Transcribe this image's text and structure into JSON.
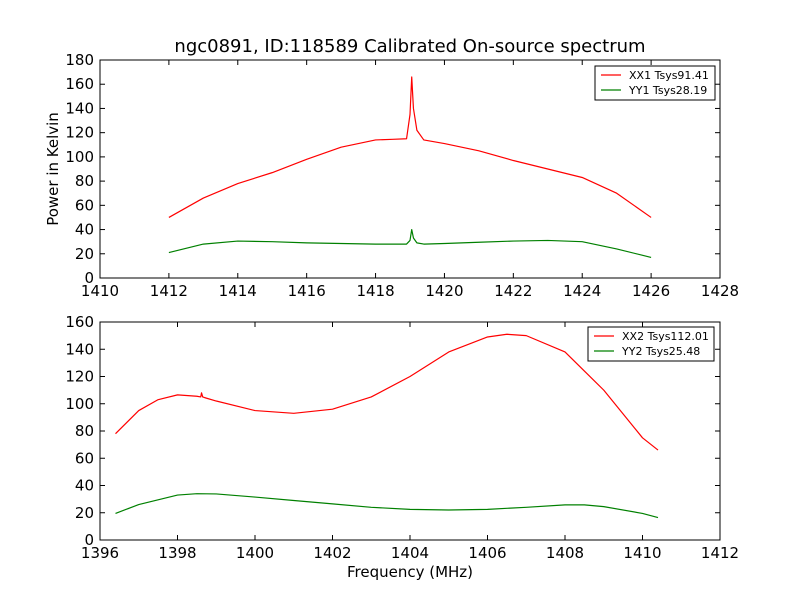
{
  "figure": {
    "title": "ngc0891, ID:118589 Calibrated On-source spectrum"
  },
  "colors": {
    "xx": "#ff0000",
    "yy": "#008000",
    "axes": "#000000",
    "background": "#ffffff"
  },
  "chart_data": [
    {
      "type": "line",
      "title": "ngc0891, ID:118589 Calibrated On-source spectrum",
      "xlabel": "",
      "ylabel": "Power in Kelvin",
      "xlim": [
        1410,
        1428
      ],
      "ylim": [
        0,
        180
      ],
      "xticks": [
        1410,
        1412,
        1414,
        1416,
        1418,
        1420,
        1422,
        1424,
        1426,
        1428
      ],
      "yticks": [
        0,
        20,
        40,
        60,
        80,
        100,
        120,
        140,
        160,
        180
      ],
      "grid": false,
      "legend": "top-right",
      "series": [
        {
          "name": "XX1 Tsys91.41",
          "color": "#ff0000",
          "x": [
            1412,
            1413,
            1414,
            1415,
            1416,
            1417,
            1418,
            1418.5,
            1418.9,
            1419.0,
            1419.05,
            1419.1,
            1419.2,
            1419.4,
            1420,
            1421,
            1422,
            1423,
            1424,
            1425,
            1426
          ],
          "y": [
            50,
            66,
            78,
            87,
            98,
            108,
            114,
            114.5,
            115,
            135,
            166,
            140,
            122,
            114,
            111,
            105,
            97,
            90,
            83,
            70,
            50
          ]
        },
        {
          "name": "YY1 Tsys28.19",
          "color": "#008000",
          "x": [
            1412,
            1413,
            1414,
            1415,
            1416,
            1417,
            1418,
            1418.9,
            1419.0,
            1419.05,
            1419.1,
            1419.2,
            1419.4,
            1420,
            1421,
            1422,
            1423,
            1424,
            1425,
            1426
          ],
          "y": [
            21,
            28,
            30.5,
            30,
            29,
            28.5,
            28,
            28,
            31,
            40,
            33,
            29,
            28,
            28.5,
            29.5,
            30.5,
            31,
            30,
            24,
            17
          ]
        }
      ]
    },
    {
      "type": "line",
      "title": "",
      "xlabel": "Frequency (MHz)",
      "ylabel": "",
      "xlim": [
        1396,
        1412
      ],
      "ylim": [
        0,
        160
      ],
      "xticks": [
        1396,
        1398,
        1400,
        1402,
        1404,
        1406,
        1408,
        1410,
        1412
      ],
      "yticks": [
        0,
        20,
        40,
        60,
        80,
        100,
        120,
        140,
        160
      ],
      "grid": false,
      "legend": "top-right",
      "series": [
        {
          "name": "XX2 Tsys112.01",
          "color": "#ff0000",
          "x": [
            1396.4,
            1397,
            1397.5,
            1398,
            1398.5,
            1398.6,
            1398.62,
            1398.65,
            1398.7,
            1399,
            1400,
            1401,
            1402,
            1403,
            1404,
            1405,
            1406,
            1406.5,
            1407,
            1408,
            1409,
            1410,
            1410.4
          ],
          "y": [
            78,
            95,
            103,
            106.5,
            105.5,
            105,
            108,
            105,
            104.5,
            102,
            95,
            93,
            96,
            105,
            120,
            138,
            149,
            151,
            150,
            138,
            110,
            75,
            66
          ]
        },
        {
          "name": "YY2 Tsys25.48",
          "color": "#008000",
          "x": [
            1396.4,
            1397,
            1398,
            1398.5,
            1399,
            1400,
            1401,
            1402,
            1403,
            1404,
            1405,
            1406,
            1407,
            1408,
            1408.5,
            1409,
            1410,
            1410.4
          ],
          "y": [
            19.5,
            26,
            33,
            34,
            33.8,
            31.5,
            29,
            26.5,
            24,
            22.5,
            22,
            22.5,
            24,
            25.8,
            25.8,
            24.5,
            19.5,
            16.5
          ]
        }
      ]
    }
  ]
}
